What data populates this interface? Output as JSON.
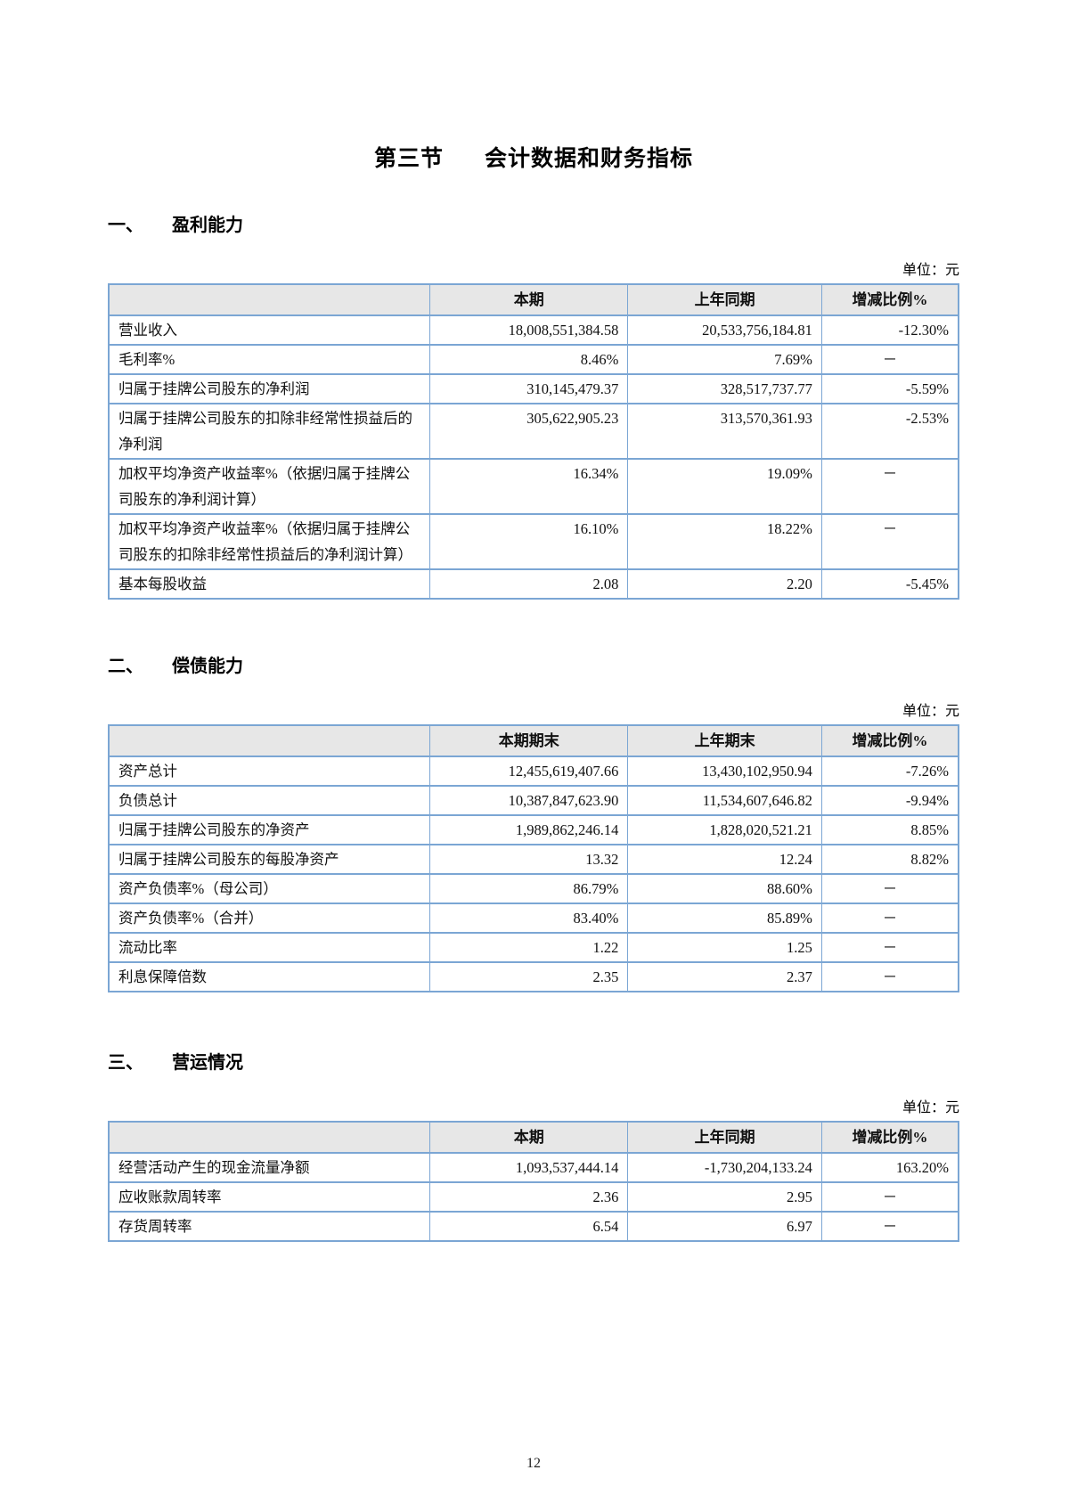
{
  "page": {
    "title_prefix": "第三节",
    "title_text": "会计数据和财务指标",
    "page_number": "12"
  },
  "sections": [
    {
      "number": "一、",
      "heading": "盈利能力",
      "unit_label": "单位：元",
      "table": {
        "headers": [
          "",
          "本期",
          "上年同期",
          "增减比例%"
        ],
        "rows": [
          [
            "营业收入",
            "18,008,551,384.58",
            "20,533,756,184.81",
            "-12.30%"
          ],
          [
            "毛利率%",
            "8.46%",
            "7.69%",
            "－"
          ],
          [
            "归属于挂牌公司股东的净利润",
            "310,145,479.37",
            "328,517,737.77",
            "-5.59%"
          ],
          [
            "归属于挂牌公司股东的扣除非经常性损益后的净利润",
            "305,622,905.23",
            "313,570,361.93",
            "-2.53%"
          ],
          [
            "加权平均净资产收益率%（依据归属于挂牌公司股东的净利润计算）",
            "16.34%",
            "19.09%",
            "－"
          ],
          [
            "加权平均净资产收益率%（依据归属于挂牌公司股东的扣除非经常性损益后的净利润计算）",
            "16.10%",
            "18.22%",
            "－"
          ],
          [
            "基本每股收益",
            "2.08",
            "2.20",
            "-5.45%"
          ]
        ]
      }
    },
    {
      "number": "二、",
      "heading": "偿债能力",
      "unit_label": "单位：元",
      "table": {
        "headers": [
          "",
          "本期期末",
          "上年期末",
          "增减比例%"
        ],
        "rows": [
          [
            "资产总计",
            "12,455,619,407.66",
            "13,430,102,950.94",
            "-7.26%"
          ],
          [
            "负债总计",
            "10,387,847,623.90",
            "11,534,607,646.82",
            "-9.94%"
          ],
          [
            "归属于挂牌公司股东的净资产",
            "1,989,862,246.14",
            "1,828,020,521.21",
            "8.85%"
          ],
          [
            "归属于挂牌公司股东的每股净资产",
            "13.32",
            "12.24",
            "8.82%"
          ],
          [
            "资产负债率%（母公司）",
            "86.79%",
            "88.60%",
            "－"
          ],
          [
            "资产负债率%（合并）",
            "83.40%",
            "85.89%",
            "－"
          ],
          [
            "流动比率",
            "1.22",
            "1.25",
            "－"
          ],
          [
            "利息保障倍数",
            "2.35",
            "2.37",
            "－"
          ]
        ]
      }
    },
    {
      "number": "三、",
      "heading": "营运情况",
      "unit_label": "单位：元",
      "table": {
        "headers": [
          "",
          "本期",
          "上年同期",
          "增减比例%"
        ],
        "rows": [
          [
            "经营活动产生的现金流量净额",
            "1,093,537,444.14",
            "-1,730,204,133.24",
            "163.20%"
          ],
          [
            "应收账款周转率",
            "2.36",
            "2.95",
            "－"
          ],
          [
            "存货周转率",
            "6.54",
            "6.97",
            "－"
          ]
        ]
      }
    }
  ]
}
